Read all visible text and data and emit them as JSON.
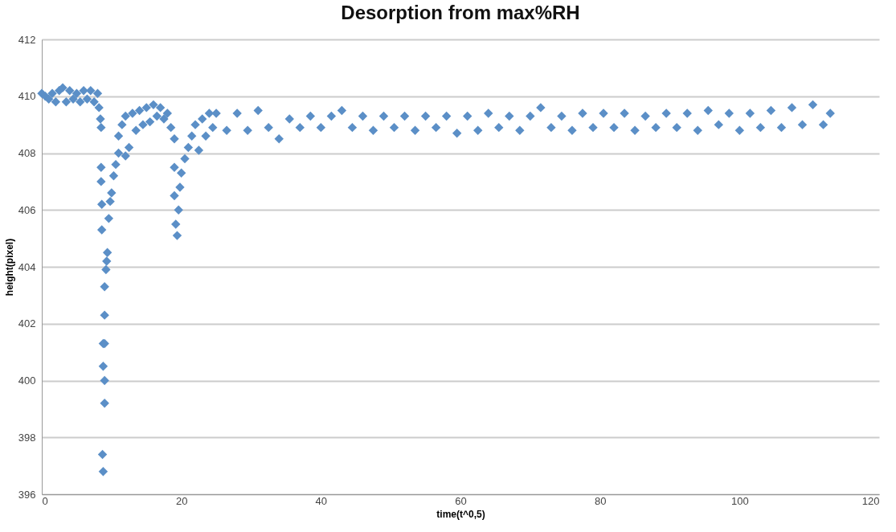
{
  "chart_data": {
    "type": "scatter",
    "title": "Desorption from max%RH",
    "xlabel": "time(t^0,5)",
    "ylabel": "height(pixel)",
    "xlim": [
      0,
      120
    ],
    "xticks": [
      0,
      20,
      40,
      60,
      80,
      100,
      120
    ],
    "ylim": [
      396,
      412
    ],
    "yticks": [
      396,
      398,
      400,
      402,
      404,
      406,
      408,
      410,
      412
    ],
    "grid": "y",
    "marker": "diamond",
    "series": [
      {
        "color": "#5b8fc7",
        "x": [
          0,
          0.5,
          1,
          1.5,
          2,
          2.5,
          3,
          3.5,
          4,
          4.5,
          5,
          5.5,
          6,
          6.5,
          7,
          7.5,
          8,
          8.2,
          8.4,
          8.5,
          8.5,
          8.5,
          8.6,
          8.6,
          8.7,
          8.8,
          8.8,
          8.8,
          9.0,
          9.0,
          9.0,
          9.0,
          9.0,
          9.2,
          9.3,
          9.4,
          9.6,
          9.8,
          10,
          10.3,
          10.6,
          11,
          11,
          11.5,
          12,
          12,
          12.5,
          13,
          13.5,
          14,
          14.5,
          15,
          15.5,
          16,
          16.5,
          17,
          17.5,
          18,
          18.5,
          19,
          19,
          19,
          19.2,
          19.4,
          19.6,
          19.8,
          20,
          20.5,
          21,
          21.5,
          22,
          22.5,
          23,
          23.5,
          24,
          24.5,
          25,
          26.5,
          28,
          29.5,
          31,
          32.5,
          34,
          35.5,
          37,
          38.5,
          40,
          41.5,
          43,
          44.5,
          46,
          47.5,
          49,
          50.5,
          52,
          53.5,
          55,
          56.5,
          58,
          59.5,
          61,
          62.5,
          64,
          65.5,
          67,
          68.5,
          70,
          71.5,
          73,
          74.5,
          76,
          77.5,
          79,
          80.5,
          82,
          83.5,
          85,
          86.5,
          88,
          89.5,
          91,
          92.5,
          94,
          95.5,
          97,
          98.5,
          100,
          101.5,
          103,
          104.5,
          106,
          107.5,
          109,
          110.5,
          112,
          113
        ],
        "values": [
          410.1,
          410.0,
          409.9,
          410.1,
          409.8,
          410.2,
          410.3,
          409.8,
          410.2,
          409.9,
          410.1,
          409.8,
          410.2,
          409.9,
          410.2,
          409.8,
          410.1,
          409.6,
          409.2,
          408.9,
          407.5,
          407.0,
          406.2,
          405.3,
          397.4,
          396.8,
          401.3,
          400.5,
          399.2,
          400.0,
          401.3,
          402.3,
          403.3,
          403.9,
          404.2,
          404.5,
          405.7,
          406.3,
          406.6,
          407.2,
          407.6,
          408.0,
          408.6,
          409.0,
          409.3,
          407.9,
          408.2,
          409.4,
          408.8,
          409.5,
          409.0,
          409.6,
          409.1,
          409.7,
          409.3,
          409.6,
          409.2,
          409.4,
          408.9,
          408.5,
          407.5,
          406.5,
          405.5,
          405.1,
          406.0,
          406.8,
          407.3,
          407.8,
          408.2,
          408.6,
          409.0,
          408.1,
          409.2,
          408.6,
          409.4,
          408.9,
          409.4,
          408.8,
          409.4,
          408.8,
          409.5,
          408.9,
          408.5,
          409.2,
          408.9,
          409.3,
          408.9,
          409.3,
          409.5,
          408.9,
          409.3,
          408.8,
          409.3,
          408.9,
          409.3,
          408.8,
          409.3,
          408.9,
          409.3,
          408.7,
          409.3,
          408.8,
          409.4,
          408.9,
          409.3,
          408.8,
          409.3,
          409.6,
          408.9,
          409.3,
          408.8,
          409.4,
          408.9,
          409.4,
          408.9,
          409.4,
          408.8,
          409.3,
          408.9,
          409.4,
          408.9,
          409.4,
          408.8,
          409.5,
          409.0,
          409.4,
          408.8,
          409.4,
          408.9,
          409.5,
          408.9,
          409.6,
          409.0,
          409.7,
          409.0,
          409.4
        ]
      }
    ]
  }
}
